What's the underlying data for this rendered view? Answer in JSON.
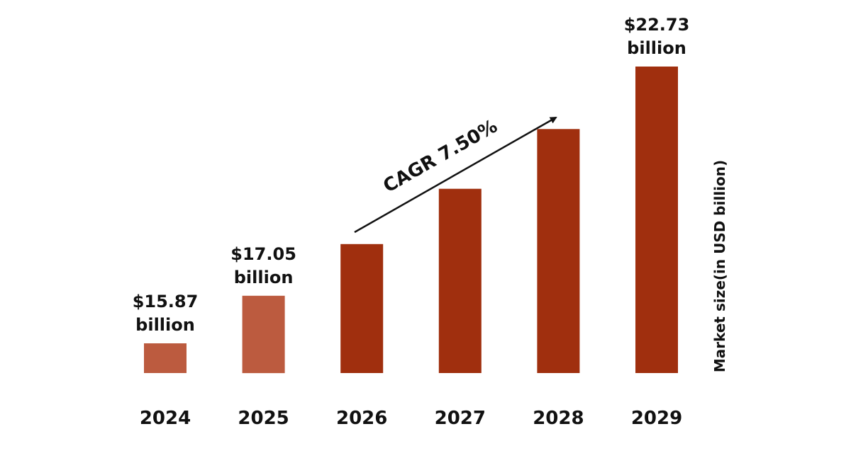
{
  "chart_data": {
    "type": "bar",
    "categories": [
      "2024",
      "2025",
      "2026",
      "2027",
      "2028",
      "2029"
    ],
    "values": [
      15.87,
      17.05,
      18.33,
      19.7,
      21.18,
      22.73
    ],
    "value_labels": [
      [
        "$15.87",
        "billion"
      ],
      [
        "$17.05",
        "billion"
      ],
      null,
      null,
      null,
      [
        "$22.73",
        "billion"
      ]
    ],
    "ylabel": "Market size(in USD billion)",
    "annotation": "CAGR 7.50%",
    "grid": false,
    "colors": {
      "historical": "#BC5B3F",
      "forecast": "#A02F0E",
      "text": "#111111"
    },
    "historical_count": 2
  }
}
